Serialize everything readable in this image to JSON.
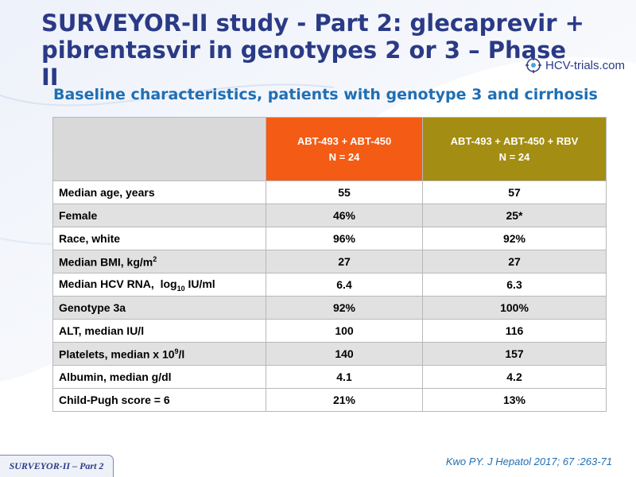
{
  "title": "SURVEYOR-II study - Part 2: glecaprevir + pibrentasvir in genotypes 2 or 3 – Phase II",
  "logo": {
    "text": "HCV-trials.com",
    "icon": "hcv-trials-logo-icon"
  },
  "subtitle": "Baseline characteristics, patients with genotype 3 and cirrhosis",
  "table": {
    "headers": [
      {
        "line1": "ABT-493 + ABT-450",
        "line2": "N = 24",
        "color": "#f45b14"
      },
      {
        "line1": "ABT-493 + ABT-450 + RBV",
        "line2": "N = 24",
        "color": "#a38d12"
      }
    ],
    "rows": [
      {
        "label": "Median age, years",
        "a": "55",
        "b": "57"
      },
      {
        "label": "Female",
        "a": "46%",
        "b": "25*"
      },
      {
        "label": "Race, white",
        "a": "96%",
        "b": "92%"
      },
      {
        "label_main": "Median BMI, kg/m",
        "label_sup": "2",
        "a": "27",
        "b": "27"
      },
      {
        "label_main": "Median HCV RNA,  log",
        "label_sub": "10",
        "label_tail": " IU/ml",
        "a": "6.4",
        "b": "6.3"
      },
      {
        "label": "Genotype 3a",
        "a": "92%",
        "b": "100%"
      },
      {
        "label": "ALT, median IU/l",
        "a": "100",
        "b": "116"
      },
      {
        "label_main": "Platelets, median x 10",
        "label_sup": "9",
        "label_tail": "/l",
        "a": "140",
        "b": "157"
      },
      {
        "label": "Albumin, median g/dl",
        "a": "4.1",
        "b": "4.2"
      },
      {
        "label": "Child-Pugh score = 6",
        "a": "21%",
        "b": "13%"
      }
    ]
  },
  "citation": "Kwo PY. J Hepatol 2017; 67 :263-71",
  "badge": "SURVEYOR-II – Part 2"
}
